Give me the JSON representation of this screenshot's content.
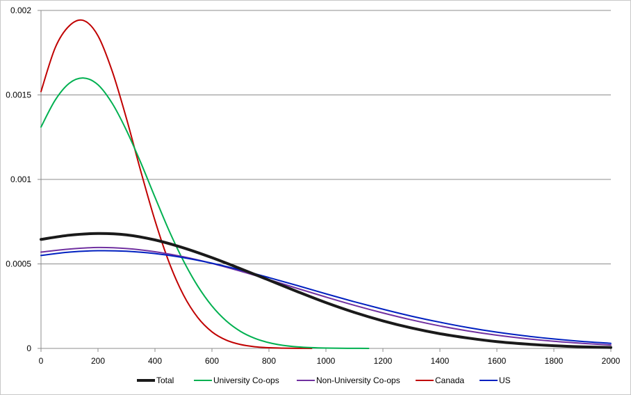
{
  "chart_data": {
    "type": "line",
    "title": "",
    "xlabel": "",
    "ylabel": "",
    "xlim": [
      0,
      2000
    ],
    "ylim": [
      0,
      0.002
    ],
    "x_ticks": [
      0,
      200,
      400,
      600,
      800,
      1000,
      1200,
      1400,
      1600,
      1800,
      2000
    ],
    "x_tick_labels": [
      "0",
      "200",
      "400",
      "600",
      "800",
      "1000",
      "1200",
      "1400",
      "1600",
      "1800",
      "2000"
    ],
    "y_ticks": [
      0,
      0.0005,
      0.001,
      0.0015,
      0.002
    ],
    "y_tick_labels": [
      "0",
      "0.0005",
      "0.001",
      "0.0015",
      "0.002"
    ],
    "grid": "horizontal",
    "legend_position": "bottom",
    "series": [
      {
        "name": "Total",
        "color": "#1a1a1a",
        "x": [
          0,
          100,
          200,
          300,
          400,
          500,
          600,
          700,
          800,
          900,
          1000,
          1100,
          1200,
          1300,
          1400,
          1500,
          1600,
          1700,
          1800,
          1900,
          2000
        ],
        "values": [
          0.000645,
          0.00067,
          0.00068,
          0.000672,
          0.000642,
          0.000595,
          0.000537,
          0.000472,
          0.000404,
          0.000336,
          0.000271,
          0.000213,
          0.000163,
          0.000121,
          8.7e-05,
          6.1e-05,
          4e-05,
          2.6e-05,
          1.6e-05,
          9.5e-06,
          5.5e-06
        ]
      },
      {
        "name": "University Co-ops",
        "color": "#00b050",
        "x": [
          0,
          50,
          100,
          150,
          200,
          250,
          300,
          350,
          400,
          450,
          500,
          550,
          600,
          650,
          700,
          750,
          800,
          850,
          900,
          950,
          1000,
          1050,
          1100,
          1150
        ],
        "values": [
          0.00131,
          0.00147,
          0.00157,
          0.0016,
          0.00156,
          0.00145,
          0.00129,
          0.0011,
          0.000895,
          0.000695,
          0.000518,
          0.000369,
          0.000251,
          0.000163,
          0.000101,
          6e-05,
          3.4e-05,
          1.8e-05,
          9.3e-06,
          4.6e-06,
          2.1e-06,
          9e-07,
          4e-07,
          2e-07
        ]
      },
      {
        "name": "Non-University Co-ops",
        "color": "#7030a0",
        "x": [
          0,
          100,
          200,
          300,
          400,
          500,
          600,
          700,
          800,
          900,
          1000,
          1100,
          1200,
          1300,
          1400,
          1500,
          1600,
          1700,
          1800,
          1900,
          2000
        ],
        "values": [
          0.00057,
          0.000588,
          0.000597,
          0.000591,
          0.000572,
          0.000542,
          0.000503,
          0.000457,
          0.000407,
          0.000355,
          0.000304,
          0.000255,
          0.00021,
          0.000169,
          0.000133,
          0.000103,
          7.8e-05,
          5.8e-05,
          4.2e-05,
          3e-05,
          2e-05
        ]
      },
      {
        "name": "Canada",
        "color": "#c00000",
        "x": [
          0,
          50,
          100,
          150,
          200,
          250,
          300,
          350,
          400,
          450,
          500,
          550,
          600,
          650,
          700,
          750,
          800,
          850,
          900,
          950
        ],
        "values": [
          0.00152,
          0.00178,
          0.00191,
          0.00194,
          0.00185,
          0.00164,
          0.00136,
          0.00105,
          0.000757,
          0.000507,
          0.000316,
          0.000183,
          9.8e-05,
          4.9e-05,
          2.3e-05,
          1e-05,
          4e-06,
          1.5e-06,
          5e-07,
          2e-07
        ]
      },
      {
        "name": "US",
        "color": "#0020c0",
        "x": [
          0,
          100,
          200,
          300,
          400,
          500,
          600,
          700,
          800,
          900,
          1000,
          1100,
          1200,
          1300,
          1400,
          1500,
          1600,
          1700,
          1800,
          1900,
          2000
        ],
        "values": [
          0.00055,
          0.00057,
          0.000578,
          0.000575,
          0.000561,
          0.000537,
          0.000504,
          0.000464,
          0.000419,
          0.000372,
          0.000323,
          0.000276,
          0.000232,
          0.000191,
          0.000155,
          0.000123,
          9.6e-05,
          7.4e-05,
          5.6e-05,
          4.1e-05,
          3e-05
        ]
      }
    ]
  }
}
